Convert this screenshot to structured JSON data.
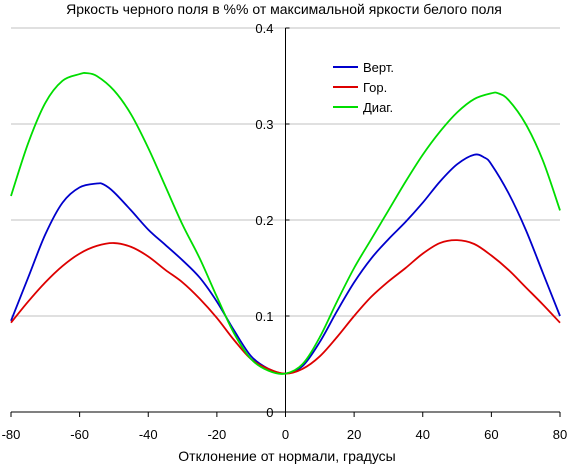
{
  "chart_data": {
    "type": "line",
    "title": "Яркость черного поля в %% от максимальной яркости белого поля",
    "xlabel": "Отклонение от нормали, градусы",
    "ylabel": "",
    "xlim": [
      -80,
      80
    ],
    "ylim": [
      0,
      0.4
    ],
    "xticks": [
      -80,
      -60,
      -40,
      -20,
      0,
      20,
      40,
      60,
      80
    ],
    "xtick_labels": [
      "-80",
      "-60",
      "-40",
      "-20",
      "0",
      "20",
      "40",
      "60",
      "80"
    ],
    "yticks": [
      0,
      0.1,
      0.2,
      0.3,
      0.4
    ],
    "ytick_labels": [
      "0",
      "0.1",
      "0.2",
      "0.3",
      "0.4"
    ],
    "grid": "horizontal",
    "legend_position": "top-right",
    "series": [
      {
        "name": "Верт.",
        "color": "#0000cc",
        "x": [
          -80,
          -75,
          -70,
          -65,
          -60,
          -55,
          -53,
          -50,
          -45,
          -40,
          -35,
          -30,
          -25,
          -20,
          -15,
          -10,
          -5,
          0,
          5,
          10,
          15,
          20,
          25,
          30,
          35,
          40,
          45,
          50,
          55,
          58,
          60,
          65,
          70,
          75,
          80
        ],
        "y": [
          0.095,
          0.14,
          0.185,
          0.218,
          0.234,
          0.238,
          0.237,
          0.229,
          0.21,
          0.19,
          0.174,
          0.158,
          0.14,
          0.115,
          0.085,
          0.058,
          0.045,
          0.04,
          0.048,
          0.073,
          0.105,
          0.135,
          0.16,
          0.18,
          0.198,
          0.218,
          0.24,
          0.258,
          0.268,
          0.265,
          0.258,
          0.228,
          0.19,
          0.145,
          0.1
        ]
      },
      {
        "name": "Гор.",
        "color": "#dd0000",
        "x": [
          -80,
          -75,
          -70,
          -65,
          -60,
          -55,
          -50,
          -45,
          -40,
          -35,
          -30,
          -25,
          -20,
          -15,
          -10,
          -5,
          0,
          5,
          10,
          15,
          20,
          25,
          30,
          35,
          40,
          45,
          50,
          55,
          60,
          65,
          70,
          75,
          80
        ],
        "y": [
          0.093,
          0.115,
          0.135,
          0.152,
          0.165,
          0.173,
          0.176,
          0.172,
          0.162,
          0.148,
          0.135,
          0.118,
          0.098,
          0.075,
          0.055,
          0.045,
          0.04,
          0.045,
          0.058,
          0.078,
          0.1,
          0.12,
          0.136,
          0.15,
          0.165,
          0.176,
          0.179,
          0.175,
          0.163,
          0.148,
          0.13,
          0.112,
          0.093
        ]
      },
      {
        "name": "Диаг.",
        "color": "#00dd00",
        "x": [
          -80,
          -75,
          -70,
          -65,
          -60,
          -58,
          -55,
          -50,
          -45,
          -40,
          -35,
          -30,
          -25,
          -20,
          -15,
          -10,
          -5,
          0,
          5,
          10,
          15,
          20,
          25,
          30,
          35,
          40,
          45,
          50,
          55,
          60,
          62,
          65,
          70,
          75,
          80
        ],
        "y": [
          0.225,
          0.28,
          0.322,
          0.345,
          0.352,
          0.353,
          0.35,
          0.335,
          0.31,
          0.275,
          0.235,
          0.195,
          0.16,
          0.12,
          0.082,
          0.055,
          0.043,
          0.04,
          0.05,
          0.078,
          0.115,
          0.15,
          0.18,
          0.21,
          0.24,
          0.268,
          0.292,
          0.312,
          0.326,
          0.332,
          0.332,
          0.325,
          0.3,
          0.262,
          0.21
        ]
      }
    ]
  }
}
